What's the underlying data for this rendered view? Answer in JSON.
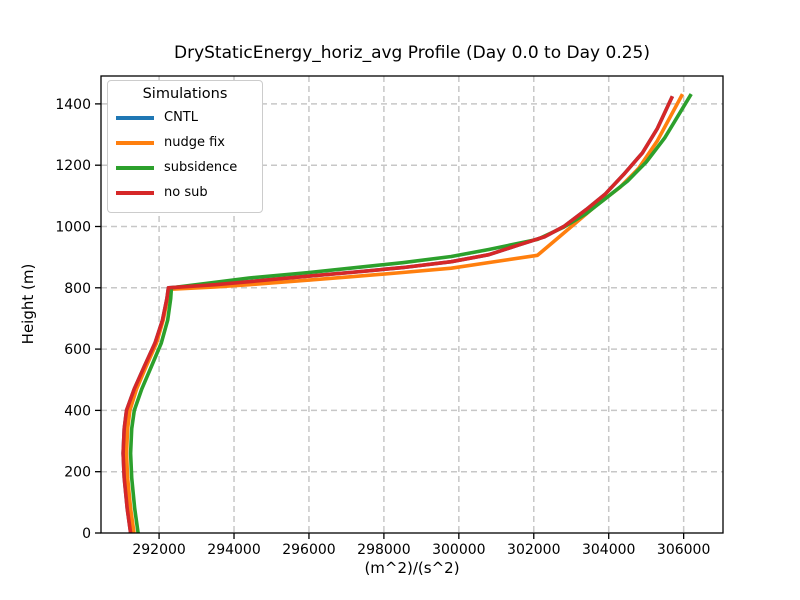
{
  "legend": {
    "title": "Simulations"
  },
  "chart_data": {
    "type": "line",
    "title": "DryStaticEnergy_horiz_avg Profile (Day 0.0 to Day 0.25)",
    "xlabel": "(m^2)/(s^2)",
    "ylabel": "Height (m)",
    "xlim": [
      290450,
      307050
    ],
    "ylim": [
      0,
      1491
    ],
    "x_ticks": [
      292000,
      294000,
      296000,
      298000,
      300000,
      302000,
      304000,
      306000
    ],
    "y_ticks": [
      0,
      200,
      400,
      600,
      800,
      1000,
      1200,
      1400
    ],
    "grid": true,
    "grid_style": "dashed",
    "grid_color": "#c7c7c7",
    "spine_color": "#000000",
    "legend_position": "upper left",
    "series": [
      {
        "name": "CNTL",
        "color": "#1f77b4",
        "points": [
          [
            291240,
            0
          ],
          [
            291150,
            80
          ],
          [
            291070,
            180
          ],
          [
            291040,
            260
          ],
          [
            291070,
            340
          ],
          [
            291130,
            400
          ],
          [
            291340,
            470
          ],
          [
            291610,
            545
          ],
          [
            291890,
            620
          ],
          [
            292090,
            695
          ],
          [
            292210,
            765
          ],
          [
            292250,
            800
          ],
          [
            293500,
            810
          ],
          [
            294400,
            820
          ],
          [
            296000,
            838
          ],
          [
            297100,
            850
          ],
          [
            298500,
            866
          ],
          [
            299800,
            885
          ],
          [
            300800,
            908
          ],
          [
            301600,
            940
          ],
          [
            302300,
            967
          ],
          [
            302800,
            1000
          ],
          [
            303400,
            1055
          ],
          [
            303900,
            1105
          ],
          [
            304400,
            1170
          ],
          [
            304900,
            1240
          ],
          [
            305300,
            1320
          ],
          [
            305700,
            1425
          ]
        ]
      },
      {
        "name": "nudge fix",
        "color": "#ff7f0e",
        "points": [
          [
            291330,
            0
          ],
          [
            291240,
            80
          ],
          [
            291160,
            180
          ],
          [
            291130,
            260
          ],
          [
            291160,
            340
          ],
          [
            291220,
            400
          ],
          [
            291400,
            470
          ],
          [
            291660,
            545
          ],
          [
            291930,
            620
          ],
          [
            292110,
            695
          ],
          [
            292220,
            762
          ],
          [
            292260,
            795
          ],
          [
            293500,
            803
          ],
          [
            294400,
            810
          ],
          [
            296000,
            825
          ],
          [
            297100,
            836
          ],
          [
            298500,
            850
          ],
          [
            299800,
            864
          ],
          [
            300900,
            884
          ],
          [
            302100,
            906
          ],
          [
            302700,
            968
          ],
          [
            303200,
            1020
          ],
          [
            303700,
            1072
          ],
          [
            304300,
            1128
          ],
          [
            304800,
            1190
          ],
          [
            305300,
            1280
          ],
          [
            305970,
            1432
          ]
        ]
      },
      {
        "name": "subsidence",
        "color": "#2ca02c",
        "points": [
          [
            291440,
            0
          ],
          [
            291350,
            80
          ],
          [
            291270,
            180
          ],
          [
            291240,
            260
          ],
          [
            291270,
            340
          ],
          [
            291340,
            400
          ],
          [
            291540,
            470
          ],
          [
            291800,
            545
          ],
          [
            292060,
            620
          ],
          [
            292230,
            695
          ],
          [
            292310,
            765
          ],
          [
            292330,
            800
          ],
          [
            293500,
            818
          ],
          [
            294400,
            832
          ],
          [
            296000,
            850
          ],
          [
            297100,
            864
          ],
          [
            298500,
            882
          ],
          [
            299800,
            902
          ],
          [
            300800,
            925
          ],
          [
            302100,
            958
          ],
          [
            302800,
            998
          ],
          [
            303400,
            1042
          ],
          [
            303900,
            1090
          ],
          [
            304500,
            1148
          ],
          [
            305000,
            1210
          ],
          [
            305500,
            1290
          ],
          [
            306200,
            1432
          ]
        ]
      },
      {
        "name": "no sub",
        "color": "#d62728",
        "points": [
          [
            291240,
            0
          ],
          [
            291150,
            80
          ],
          [
            291070,
            180
          ],
          [
            291040,
            260
          ],
          [
            291070,
            340
          ],
          [
            291130,
            400
          ],
          [
            291340,
            470
          ],
          [
            291610,
            545
          ],
          [
            291890,
            620
          ],
          [
            292090,
            695
          ],
          [
            292210,
            765
          ],
          [
            292250,
            800
          ],
          [
            293500,
            810
          ],
          [
            294400,
            820
          ],
          [
            296000,
            838
          ],
          [
            297100,
            850
          ],
          [
            298500,
            866
          ],
          [
            299800,
            885
          ],
          [
            300800,
            908
          ],
          [
            301600,
            940
          ],
          [
            302300,
            967
          ],
          [
            302800,
            1000
          ],
          [
            303400,
            1055
          ],
          [
            303900,
            1105
          ],
          [
            304400,
            1170
          ],
          [
            304900,
            1240
          ],
          [
            305300,
            1320
          ],
          [
            305700,
            1425
          ]
        ]
      }
    ]
  }
}
